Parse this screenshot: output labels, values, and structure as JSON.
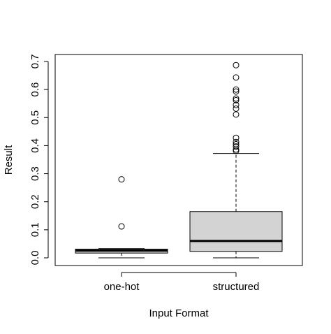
{
  "chart_data": {
    "type": "boxplot",
    "xlabel": "Input Format",
    "ylabel": "Result",
    "ylim": [
      0,
      0.7
    ],
    "y_ticks": [
      "0.0",
      "0.1",
      "0.2",
      "0.3",
      "0.4",
      "0.5",
      "0.6",
      "0.7"
    ],
    "y_tick_values": [
      0,
      0.1,
      0.2,
      0.3,
      0.4,
      0.5,
      0.6,
      0.7
    ],
    "grid": false,
    "box_fill": "#d3d3d3",
    "categories": [
      "one-hot",
      "structured"
    ],
    "boxes": [
      {
        "category": "one-hot",
        "whisker_low": 0.0,
        "q1": 0.017,
        "median": 0.026,
        "q3": 0.031,
        "whisker_high": 0.033,
        "outliers": [
          0.112,
          0.28
        ]
      },
      {
        "category": "structured",
        "whisker_low": 0.0,
        "q1": 0.023,
        "median": 0.06,
        "q3": 0.165,
        "whisker_high": 0.372,
        "outliers": [
          0.381,
          0.386,
          0.397,
          0.405,
          0.413,
          0.428,
          0.511,
          0.532,
          0.545,
          0.562,
          0.568,
          0.593,
          0.6,
          0.643,
          0.687
        ]
      }
    ]
  }
}
